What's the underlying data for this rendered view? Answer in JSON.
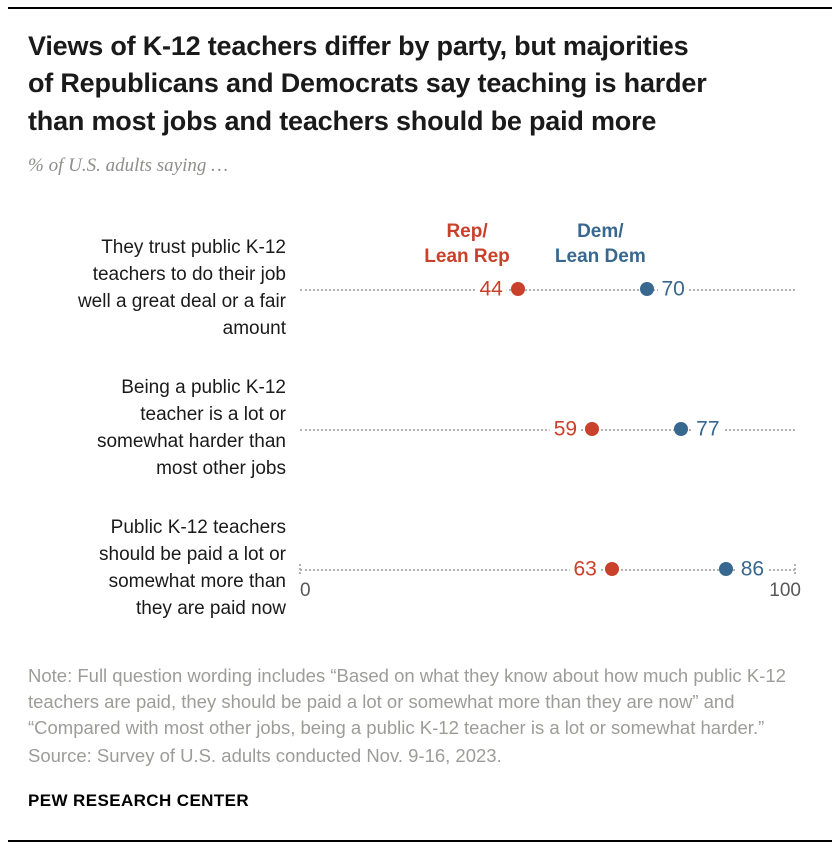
{
  "header": {
    "title": "Views of K-12 teachers differ by party, but majorities\nof Republicans and Democrats say teaching is harder\nthan most jobs and teachers should be paid more",
    "subtitle": "% of U.S. adults saying …"
  },
  "chart_data": {
    "type": "scatter",
    "subtype": "dot-plot",
    "title": "Views of K-12 teachers differ by party, but majorities of Republicans and Democrats say teaching is harder than most jobs and teachers should be paid more",
    "categories": [
      "They trust public K-12\nteachers to do their job\nwell a great deal or a fair\namount",
      "Being a public K-12\nteacher is a lot or\nsomewhat harder than\nmost other jobs",
      "Public K-12 teachers\nshould be paid a lot or\nsomewhat more than\nthey are paid now"
    ],
    "series": [
      {
        "name": "Rep/Lean Rep",
        "color": "#c9402b",
        "values": [
          44,
          59,
          63
        ]
      },
      {
        "name": "Dem/Lean Dem",
        "color": "#38678f",
        "values": [
          70,
          77,
          86
        ]
      }
    ],
    "legend": [
      {
        "label": "Rep/\nLean Rep",
        "color": "#c9402b"
      },
      {
        "label": "Dem/\nLean Dem",
        "color": "#38678f"
      }
    ],
    "xlim": [
      0,
      100
    ],
    "axis_ticks": [
      "0",
      "100"
    ],
    "grid": "dotted-leader-lines",
    "legend_position": "above-first-row",
    "line_color": "#b3b3b3"
  },
  "footer": {
    "note": "Note: Full question wording includes “Based on what they know about how much public K-12 teachers are paid, they should be paid a lot or somewhat more than they are now” and “Compared with most other jobs, being a public K-12 teacher is a lot or somewhat harder.”",
    "source": "Source: Survey of U.S. adults conducted Nov. 9-16, 2023.",
    "brand": "PEW RESEARCH CENTER"
  }
}
